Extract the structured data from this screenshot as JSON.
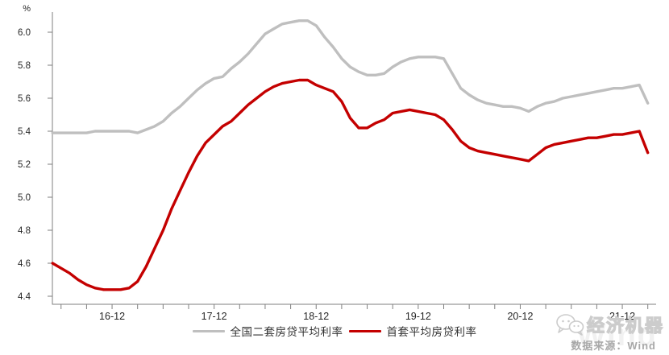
{
  "chart_data": {
    "type": "line",
    "title": "",
    "ylabel": "%",
    "grid": false,
    "legend_position": "bottom",
    "ylim": [
      4.35,
      6.15
    ],
    "y_ticks": [
      4.4,
      4.6,
      4.8,
      5.0,
      5.2,
      5.4,
      5.6,
      5.8,
      6.0
    ],
    "x_tick_labels": [
      "16-12",
      "17-12",
      "18-12",
      "19-12",
      "20-12",
      "21-12"
    ],
    "x": [
      "2016-05",
      "2016-06",
      "2016-07",
      "2016-08",
      "2016-09",
      "2016-10",
      "2016-11",
      "2016-12",
      "2017-01",
      "2017-02",
      "2017-03",
      "2017-04",
      "2017-05",
      "2017-06",
      "2017-07",
      "2017-08",
      "2017-09",
      "2017-10",
      "2017-11",
      "2017-12",
      "2018-01",
      "2018-02",
      "2018-03",
      "2018-04",
      "2018-05",
      "2018-06",
      "2018-07",
      "2018-08",
      "2018-09",
      "2018-10",
      "2018-11",
      "2018-12",
      "2019-01",
      "2019-02",
      "2019-03",
      "2019-04",
      "2019-05",
      "2019-06",
      "2019-07",
      "2019-08",
      "2019-09",
      "2019-10",
      "2019-11",
      "2019-12",
      "2020-01",
      "2020-02",
      "2020-03",
      "2020-04",
      "2020-05",
      "2020-06",
      "2020-07",
      "2020-08",
      "2020-09",
      "2020-10",
      "2020-11",
      "2020-12",
      "2021-01",
      "2021-02",
      "2021-03",
      "2021-04",
      "2021-05",
      "2021-06",
      "2021-07",
      "2021-08",
      "2021-09",
      "2021-10",
      "2021-11",
      "2021-12",
      "2022-01",
      "2022-02",
      "2022-03"
    ],
    "series": [
      {
        "name": "全国二套房贷平均利率",
        "color": "#bfbfbf",
        "values": [
          5.39,
          5.39,
          5.39,
          5.39,
          5.39,
          5.4,
          5.4,
          5.4,
          5.4,
          5.4,
          5.39,
          5.41,
          5.43,
          5.46,
          5.51,
          5.55,
          5.6,
          5.65,
          5.69,
          5.72,
          5.73,
          5.78,
          5.82,
          5.87,
          5.93,
          5.99,
          6.02,
          6.05,
          6.06,
          6.07,
          6.07,
          6.04,
          5.97,
          5.91,
          5.84,
          5.79,
          5.76,
          5.74,
          5.74,
          5.75,
          5.79,
          5.82,
          5.84,
          5.85,
          5.85,
          5.85,
          5.84,
          5.75,
          5.66,
          5.62,
          5.59,
          5.57,
          5.56,
          5.55,
          5.55,
          5.54,
          5.52,
          5.55,
          5.57,
          5.58,
          5.6,
          5.61,
          5.62,
          5.63,
          5.64,
          5.65,
          5.66,
          5.66,
          5.67,
          5.68,
          5.57
        ]
      },
      {
        "name": "首套平均房贷利率",
        "color": "#c40000",
        "values": [
          4.6,
          4.57,
          4.54,
          4.5,
          4.47,
          4.45,
          4.44,
          4.44,
          4.44,
          4.45,
          4.49,
          4.58,
          4.69,
          4.8,
          4.93,
          5.04,
          5.15,
          5.25,
          5.33,
          5.38,
          5.43,
          5.46,
          5.51,
          5.56,
          5.6,
          5.64,
          5.67,
          5.69,
          5.7,
          5.71,
          5.71,
          5.68,
          5.66,
          5.64,
          5.58,
          5.48,
          5.42,
          5.42,
          5.45,
          5.47,
          5.51,
          5.52,
          5.53,
          5.52,
          5.51,
          5.5,
          5.47,
          5.41,
          5.34,
          5.3,
          5.28,
          5.27,
          5.26,
          5.25,
          5.24,
          5.23,
          5.22,
          5.26,
          5.3,
          5.32,
          5.33,
          5.34,
          5.35,
          5.36,
          5.36,
          5.37,
          5.38,
          5.38,
          5.39,
          5.4,
          5.27
        ]
      }
    ],
    "axis_color": "#7f7f7f",
    "tick_text_color": "#262626"
  },
  "legend": {
    "second_home_label": "全国二套房贷平均利率",
    "first_home_label": "首套平均房贷利率"
  },
  "footer": {
    "brand": "经济机器",
    "source": "数据来源：Wind",
    "watermark": "Wind"
  },
  "axis": {
    "percent_label": "%"
  }
}
